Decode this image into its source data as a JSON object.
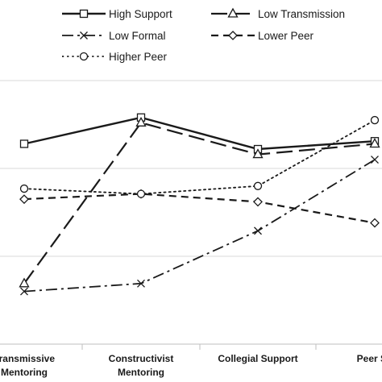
{
  "chart_data": {
    "type": "line",
    "categories": [
      [
        "Transmissive",
        "Mentoring"
      ],
      [
        "Constructivist",
        "Mentoring"
      ],
      [
        "Collegial Support"
      ],
      [
        "Peer Su"
      ]
    ],
    "grid": true,
    "legend_placement": "top",
    "series": [
      {
        "name": "High Support",
        "values": [
          0.76,
          0.86,
          0.74,
          0.77
        ],
        "marker": "square",
        "dash": "solid",
        "stroke_width": 2.4
      },
      {
        "name": "Low Transmission",
        "values": [
          0.23,
          0.84,
          0.72,
          0.76
        ],
        "marker": "triangle",
        "dash": "longdash",
        "stroke_width": 2.2
      },
      {
        "name": "Low Formal",
        "values": [
          0.2,
          0.23,
          0.43,
          0.7
        ],
        "marker": "x",
        "dash": "dashdot",
        "stroke_width": 1.8
      },
      {
        "name": "Lower Peer",
        "values": [
          0.55,
          0.57,
          0.54,
          0.46
        ],
        "marker": "diamond",
        "dash": "dash",
        "stroke_width": 2.2
      },
      {
        "name": "Higher Peer",
        "values": [
          0.59,
          0.57,
          0.6,
          0.85
        ],
        "marker": "circle",
        "dash": "dot",
        "stroke_width": 1.8
      }
    ]
  }
}
